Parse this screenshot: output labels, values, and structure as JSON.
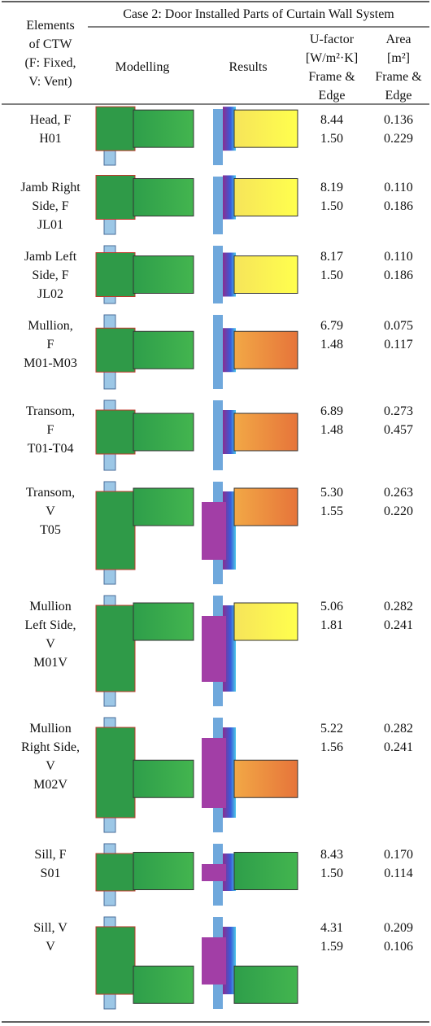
{
  "header": {
    "element_col": [
      "Elements",
      "of CTW",
      "(F: Fixed,",
      "V: Vent)"
    ],
    "case_title": "Case 2: Door Installed Parts of Curtain Wall System",
    "modelling": "Modelling",
    "results": "Results",
    "u_factor": [
      "U-factor",
      "[W/m²·K]",
      "Frame &",
      "Edge"
    ],
    "area": [
      "Area",
      "[m²]",
      "Frame &",
      "Edge"
    ]
  },
  "table": {
    "rows": [
      {
        "element": [
          "Head, F",
          "H01"
        ],
        "u_factor": [
          "8.44",
          "1.50"
        ],
        "area": [
          "0.136",
          "0.229"
        ]
      },
      {
        "element": [
          "Jamb Right",
          "Side, F",
          "JL01"
        ],
        "u_factor": [
          "8.19",
          "1.50"
        ],
        "area": [
          "0.110",
          "0.186"
        ]
      },
      {
        "element": [
          "Jamb Left",
          "Side, F",
          "JL02"
        ],
        "u_factor": [
          "8.17",
          "1.50"
        ],
        "area": [
          "0.110",
          "0.186"
        ]
      },
      {
        "element": [
          "Mullion,",
          "F",
          "M01-M03"
        ],
        "u_factor": [
          "6.79",
          "1.48"
        ],
        "area": [
          "0.075",
          "0.117"
        ]
      },
      {
        "element": [
          "Transom,",
          "F",
          "T01-T04"
        ],
        "u_factor": [
          "6.89",
          "1.48"
        ],
        "area": [
          "0.273",
          "0.457"
        ]
      },
      {
        "element": [
          "Transom,",
          "V",
          "T05"
        ],
        "u_factor": [
          "5.30",
          "1.55"
        ],
        "area": [
          "0.263",
          "0.220"
        ]
      },
      {
        "element": [
          "Mullion",
          "Left Side,",
          "V",
          "M01V"
        ],
        "u_factor": [
          "5.06",
          "1.81"
        ],
        "area": [
          "0.282",
          "0.241"
        ]
      },
      {
        "element": [
          "Mullion",
          "Right Side,",
          "V",
          "M02V"
        ],
        "u_factor": [
          "5.22",
          "1.56"
        ],
        "area": [
          "0.282",
          "0.241"
        ]
      },
      {
        "element": [
          "Sill, F",
          "S01"
        ],
        "u_factor": [
          "8.43",
          "1.50"
        ],
        "area": [
          "0.170",
          "0.114"
        ]
      },
      {
        "element": [
          "Sill, V",
          "V"
        ],
        "u_factor": [
          "4.31",
          "1.59"
        ],
        "area": [
          "0.209",
          "0.106"
        ]
      }
    ]
  }
}
